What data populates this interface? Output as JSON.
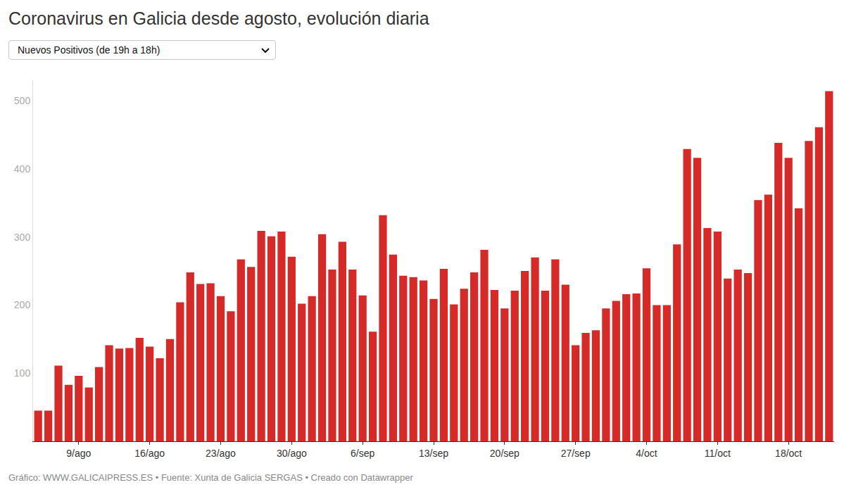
{
  "chart_data": {
    "type": "bar",
    "title": "Coronavirus en Galicia desde agosto, evolución diaria",
    "subtitle": "Nuevos Positivos (de 19h a 18h)",
    "caption": "Gráfico: WWW.GALICAIPRESS.ES • Fuente: Xunta de Galicia SERGAS • Creado con Datawrapper",
    "categories": [
      null,
      null,
      null,
      null,
      "9/ago",
      null,
      null,
      null,
      null,
      null,
      null,
      "16/ago",
      null,
      null,
      null,
      null,
      null,
      null,
      "23/ago",
      null,
      null,
      null,
      null,
      null,
      null,
      "30/ago",
      null,
      null,
      null,
      null,
      null,
      null,
      "6/sep",
      null,
      null,
      null,
      null,
      null,
      null,
      "13/sep",
      null,
      null,
      null,
      null,
      null,
      null,
      "20/sep",
      null,
      null,
      null,
      null,
      null,
      null,
      "27/sep",
      null,
      null,
      null,
      null,
      null,
      null,
      "4/oct",
      null,
      null,
      null,
      null,
      null,
      null,
      "11/oct",
      null,
      null,
      null,
      null,
      null,
      null,
      "18/oct",
      null,
      null,
      null,
      null
    ],
    "values": [
      45,
      45,
      111,
      83,
      96,
      79,
      109,
      141,
      136,
      137,
      152,
      139,
      122,
      150,
      204,
      248,
      231,
      232,
      213,
      191,
      267,
      256,
      309,
      301,
      308,
      271,
      202,
      213,
      304,
      252,
      293,
      252,
      214,
      161,
      332,
      274,
      243,
      241,
      236,
      209,
      253,
      201,
      224,
      248,
      281,
      222,
      195,
      221,
      250,
      270,
      221,
      267,
      230,
      141,
      159,
      163,
      195,
      206,
      216,
      217,
      254,
      200,
      200,
      289,
      429,
      416,
      313,
      308,
      239,
      252,
      247,
      354,
      362,
      438,
      416,
      342,
      441,
      461,
      514
    ],
    "color": "#d62a28",
    "ylim": [
      0,
      530
    ],
    "yticks": [
      100,
      200,
      300,
      400,
      500
    ],
    "grid": false
  }
}
